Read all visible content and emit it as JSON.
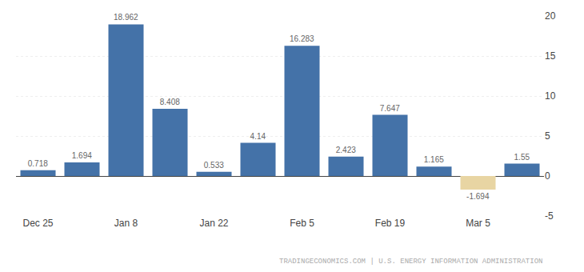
{
  "chart_data": {
    "type": "bar",
    "categories": [
      "Dec 25",
      null,
      "Jan 8",
      null,
      "Jan 22",
      null,
      "Feb 5",
      null,
      "Feb 19",
      null,
      "Mar 5",
      null
    ],
    "values": [
      0.718,
      1.694,
      18.962,
      8.408,
      0.533,
      4.14,
      16.283,
      2.423,
      7.647,
      1.165,
      -1.694,
      1.55
    ],
    "colors": [
      "#4472a8",
      "#4472a8",
      "#4472a8",
      "#4472a8",
      "#4472a8",
      "#4472a8",
      "#4472a8",
      "#4472a8",
      "#4472a8",
      "#4472a8",
      "#e8d5a3",
      "#4472a8"
    ],
    "ylim": [
      -5,
      20
    ],
    "yticks": [
      -5,
      0,
      5,
      10,
      15,
      20
    ],
    "grid": true,
    "data_labels": true,
    "annotations": [
      "TRADINGECONOMICS.COM | U.S. ENERGY INFORMATION ADMINISTRATION"
    ]
  }
}
